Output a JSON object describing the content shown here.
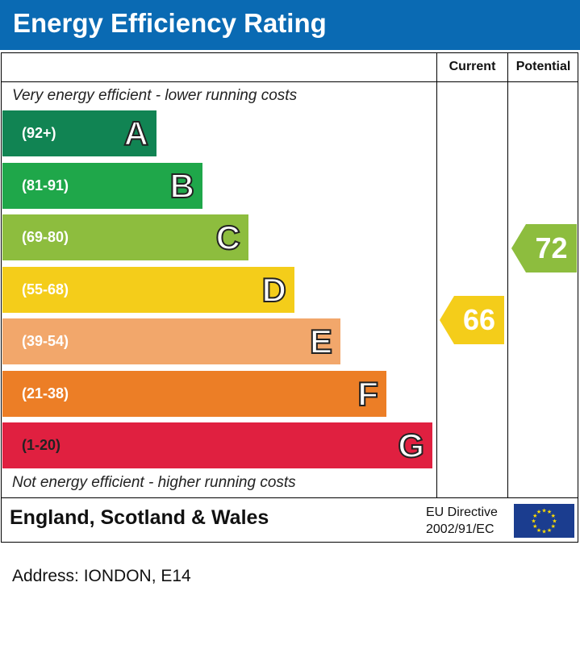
{
  "title": "Energy Efficiency Rating",
  "columns": {
    "current": "Current",
    "potential": "Potential"
  },
  "top_note": "Very energy efficient - lower running costs",
  "bottom_note": "Not energy efficient - higher running costs",
  "footer": {
    "region": "England, Scotland & Wales",
    "directive_line1": "EU Directive",
    "directive_line2": "2002/91/EC"
  },
  "address": "Address: IONDON, E14",
  "colors": {
    "header": "#0a6ab3",
    "A": "#118453",
    "B": "#1fa74a",
    "C": "#8dbd3e",
    "D": "#f4cd1a",
    "E": "#f2a76b",
    "F": "#ec7e26",
    "G": "#e02040",
    "eu_flag": "#1b3d8f",
    "eu_star": "#ffdd00"
  },
  "chart_data": {
    "type": "bar",
    "categories": [
      "A",
      "B",
      "C",
      "D",
      "E",
      "F",
      "G"
    ],
    "ranges": [
      "(92+)",
      "(81-91)",
      "(69-80)",
      "(55-68)",
      "(39-54)",
      "(21-38)",
      "(1-20)"
    ],
    "current": {
      "value": 66,
      "band": "D"
    },
    "potential": {
      "value": 72,
      "band": "C"
    }
  }
}
